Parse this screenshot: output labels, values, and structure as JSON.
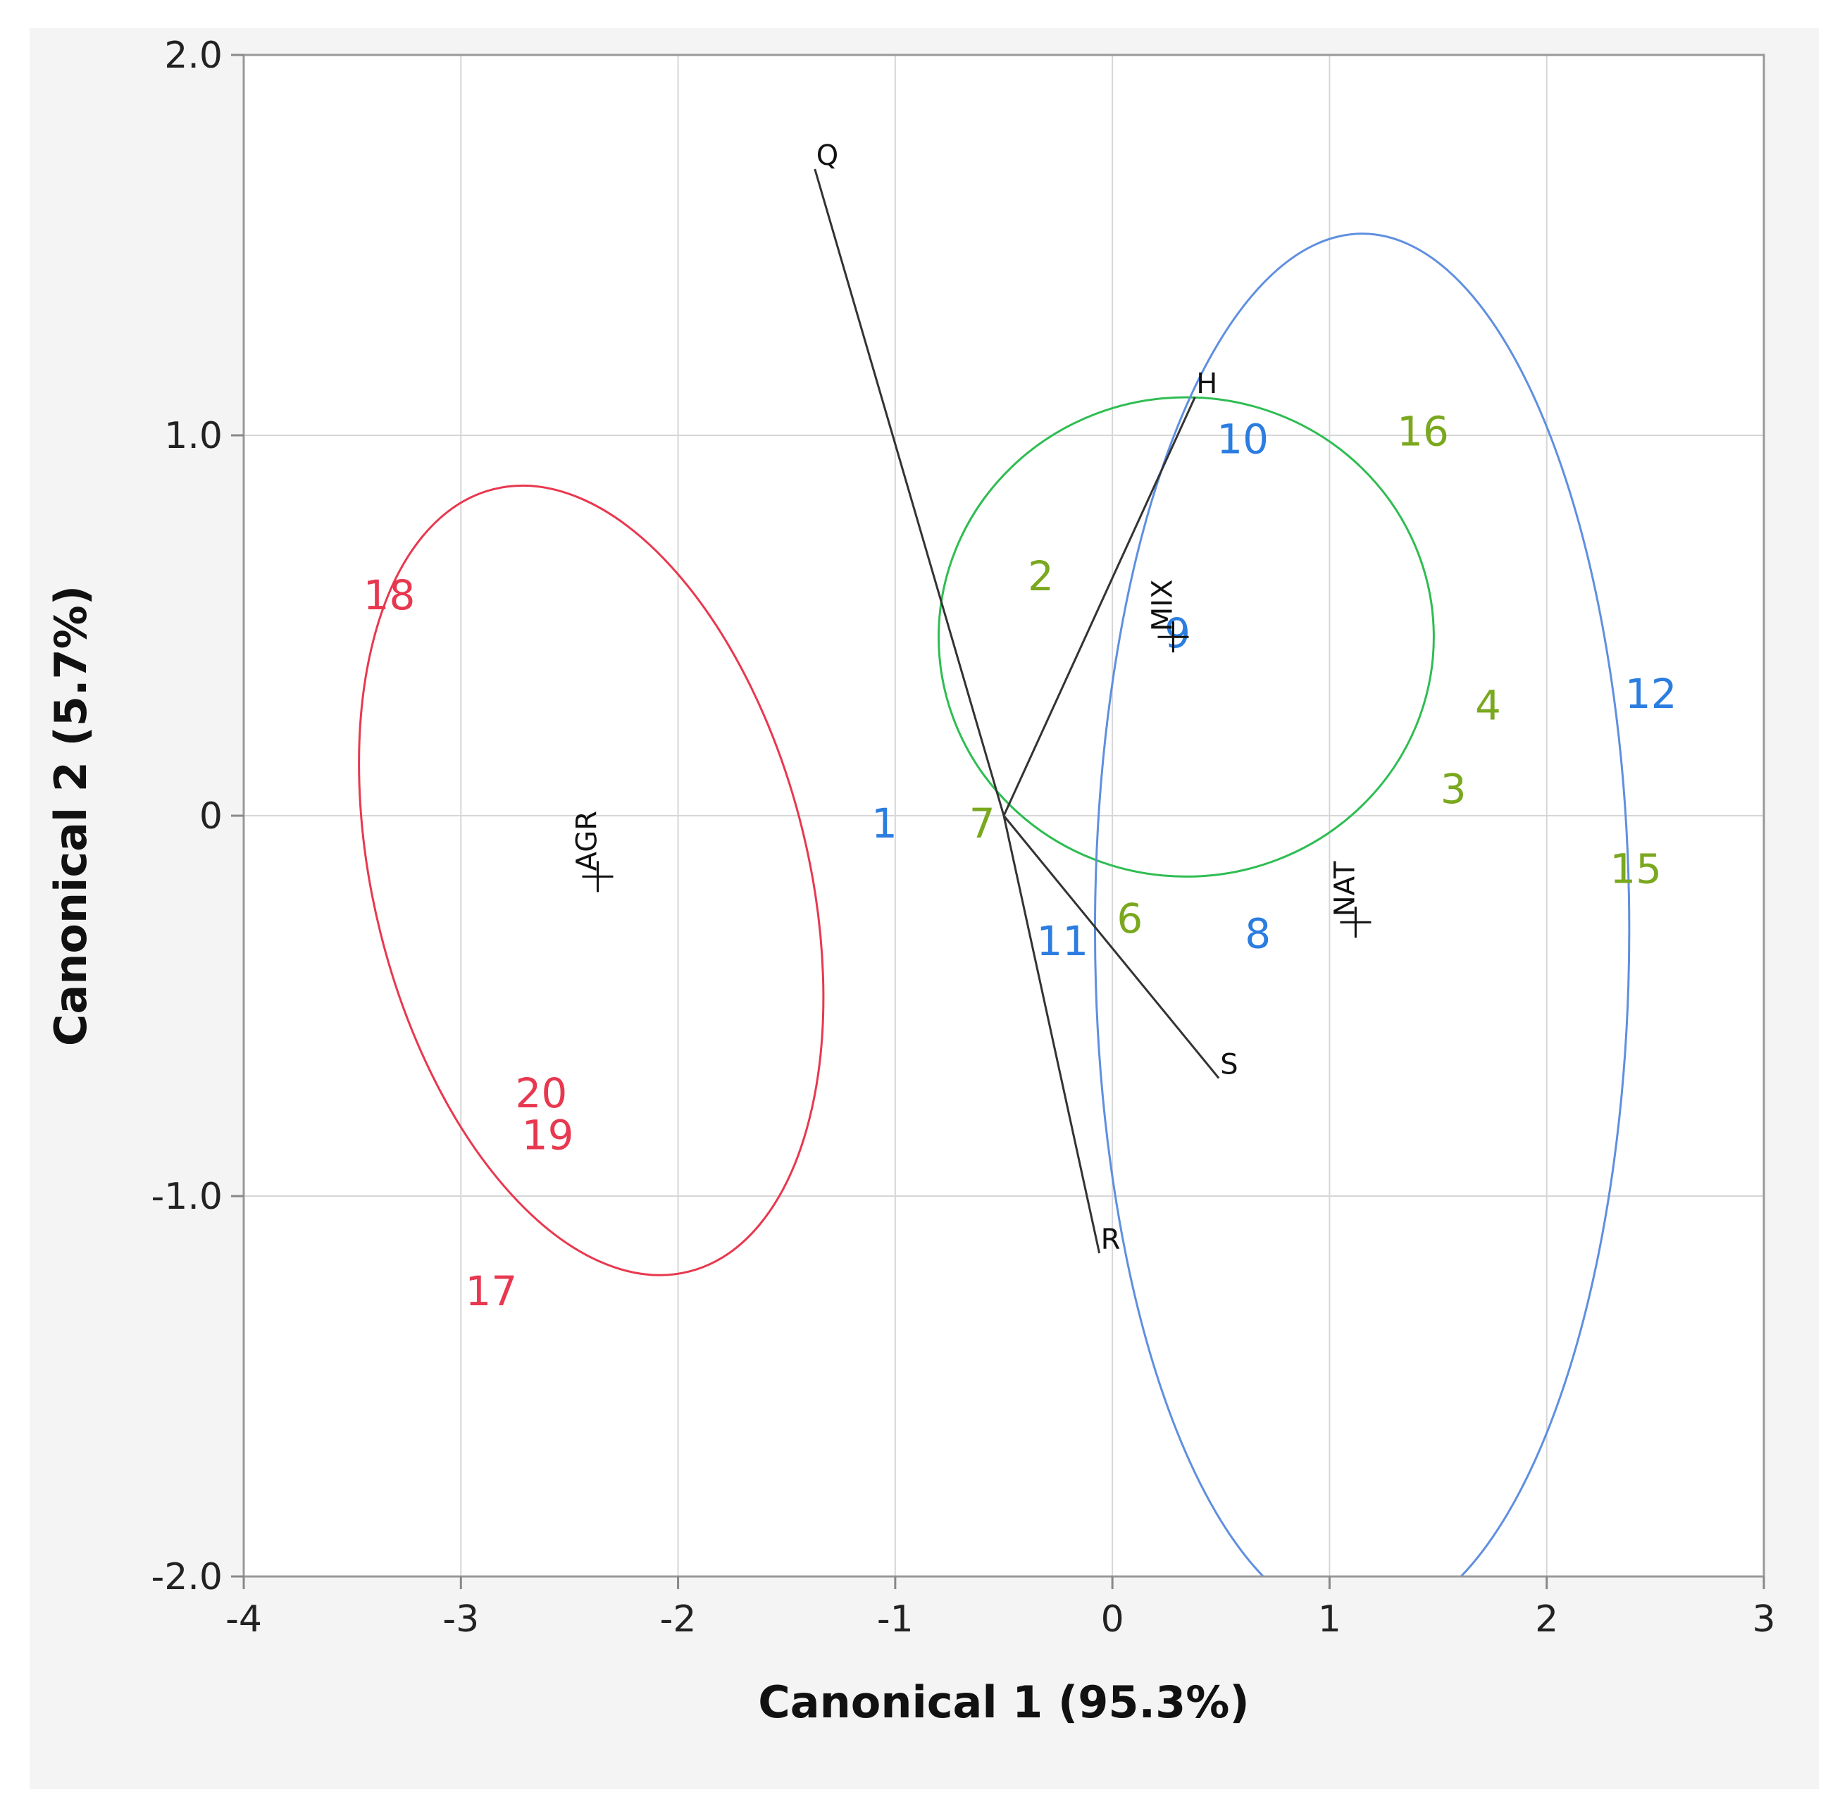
{
  "chart_data": {
    "type": "scatter",
    "title": "",
    "xlabel": "Canonical 1 (95.3%)",
    "ylabel": "Canonical 2 (5.7%)",
    "xlim": [
      -4,
      3
    ],
    "ylim": [
      -2,
      2
    ],
    "xticks": [
      -4,
      -3,
      -2,
      -1,
      0,
      1,
      2,
      3
    ],
    "xtick_labels": [
      "-4",
      "-3",
      "-2",
      "-1",
      "0",
      "1",
      "2",
      "3"
    ],
    "yticks": [
      -2,
      -1,
      0,
      1,
      2
    ],
    "ytick_labels": [
      "-2.0",
      "-1.0",
      "0",
      "1.0",
      "2.0"
    ],
    "grid": true,
    "colors": {
      "AGR": "#e8384f",
      "MIX": "#7aa81e",
      "NAT": "#2b7de0",
      "MIX_ellipse": "#2ebd52",
      "NAT_ellipse": "#5f8fe0",
      "vectors": "#333333"
    },
    "points": [
      {
        "label": "1",
        "x": -1.05,
        "y": -0.02,
        "group": "NAT"
      },
      {
        "label": "2",
        "x": -0.33,
        "y": 0.63,
        "group": "MIX"
      },
      {
        "label": "3",
        "x": 1.57,
        "y": 0.07,
        "group": "MIX"
      },
      {
        "label": "4",
        "x": 1.73,
        "y": 0.29,
        "group": "MIX"
      },
      {
        "label": "6",
        "x": 0.08,
        "y": -0.27,
        "group": "MIX"
      },
      {
        "label": "7",
        "x": -0.6,
        "y": -0.02,
        "group": "MIX"
      },
      {
        "label": "8",
        "x": 0.67,
        "y": -0.31,
        "group": "NAT"
      },
      {
        "label": "9",
        "x": 0.3,
        "y": 0.48,
        "group": "NAT"
      },
      {
        "label": "10",
        "x": 0.6,
        "y": 0.99,
        "group": "NAT"
      },
      {
        "label": "11",
        "x": -0.23,
        "y": -0.33,
        "group": "NAT"
      },
      {
        "label": "12",
        "x": 2.48,
        "y": 0.32,
        "group": "NAT"
      },
      {
        "label": "15",
        "x": 2.41,
        "y": -0.14,
        "group": "MIX"
      },
      {
        "label": "16",
        "x": 1.43,
        "y": 1.01,
        "group": "MIX"
      },
      {
        "label": "17",
        "x": -2.86,
        "y": -1.25,
        "group": "AGR"
      },
      {
        "label": "18",
        "x": -3.33,
        "y": 0.58,
        "group": "AGR"
      },
      {
        "label": "19",
        "x": -2.6,
        "y": -0.84,
        "group": "AGR"
      },
      {
        "label": "20",
        "x": -2.63,
        "y": -0.73,
        "group": "AGR"
      }
    ],
    "group_means": [
      {
        "label": "AGR",
        "x": -2.37,
        "y": -0.16
      },
      {
        "label": "MIX",
        "x": 0.28,
        "y": 0.47
      },
      {
        "label": "NAT",
        "x": 1.12,
        "y": -0.28
      }
    ],
    "ellipses": [
      {
        "group": "AGR",
        "cx": -2.4,
        "cy": -0.17,
        "rx": 1.0,
        "ry": 1.06,
        "rotate_deg": -14
      },
      {
        "group": "MIX",
        "cx": 0.34,
        "cy": 0.47,
        "rx": 1.14,
        "ry": 0.63,
        "rotate_deg": 0
      },
      {
        "group": "NAT",
        "cx": 1.15,
        "cy": -0.3,
        "rx": 1.23,
        "ry": 1.83,
        "rotate_deg": 0
      }
    ],
    "vector_origin": {
      "x": -0.5,
      "y": 0.0
    },
    "vectors": [
      {
        "label": "Q",
        "x": -1.37,
        "y": 1.7
      },
      {
        "label": "H",
        "x": 0.38,
        "y": 1.1
      },
      {
        "label": "S",
        "x": 0.49,
        "y": -0.69
      },
      {
        "label": "R",
        "x": -0.06,
        "y": -1.15
      }
    ]
  }
}
